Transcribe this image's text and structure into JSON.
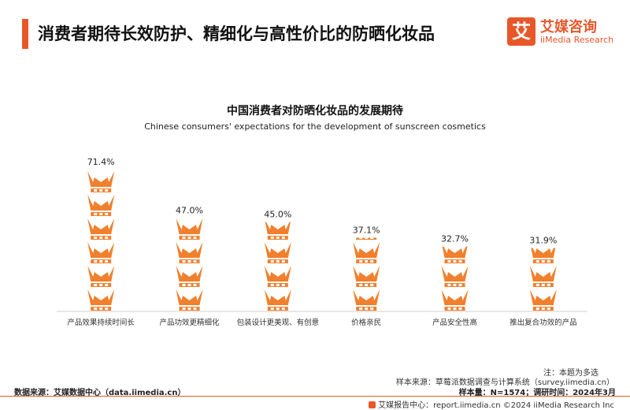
{
  "header": {
    "title": "消费者期待长效防护、精细化与高性价比的防晒化妆品",
    "logo_mark": "艾",
    "logo_cn": "艾媒咨询",
    "logo_en": "iiMedia Research"
  },
  "chart_data": {
    "type": "bar",
    "title": "中国消费者对防晒化妆品的发展期待",
    "subtitle": "Chinese consumers' expectations for the development of sunscreen cosmetics",
    "categories": [
      "产品效果持续时间长",
      "产品功效更精细化",
      "包装设计更美观、有创意",
      "价格亲民",
      "产品安全性高",
      "推出复合功效的产品"
    ],
    "values": [
      71.4,
      47.0,
      45.0,
      37.1,
      32.7,
      31.9
    ],
    "value_labels": [
      "71.4%",
      "47.0%",
      "45.0%",
      "37.1%",
      "32.7%",
      "31.9%"
    ],
    "unit": "%",
    "ylim": [
      0,
      71.4
    ],
    "mark": "crown-icon",
    "color": "#f0802e",
    "grid": false,
    "legend": "none"
  },
  "notes": {
    "note": "注：本题为多选",
    "sample_source": "样本来源：草莓派数据调查与计算系统（survey.iimedia.cn）",
    "data_source": "数据来源：艾媒数据中心（data.iimedia.cn）",
    "sample_size": "样本量：N=1574；调研时间：2024年3月"
  },
  "footer": {
    "text": "艾媒报告中心：report.iimedia.cn    ©2024  iiMedia Research  Inc"
  }
}
